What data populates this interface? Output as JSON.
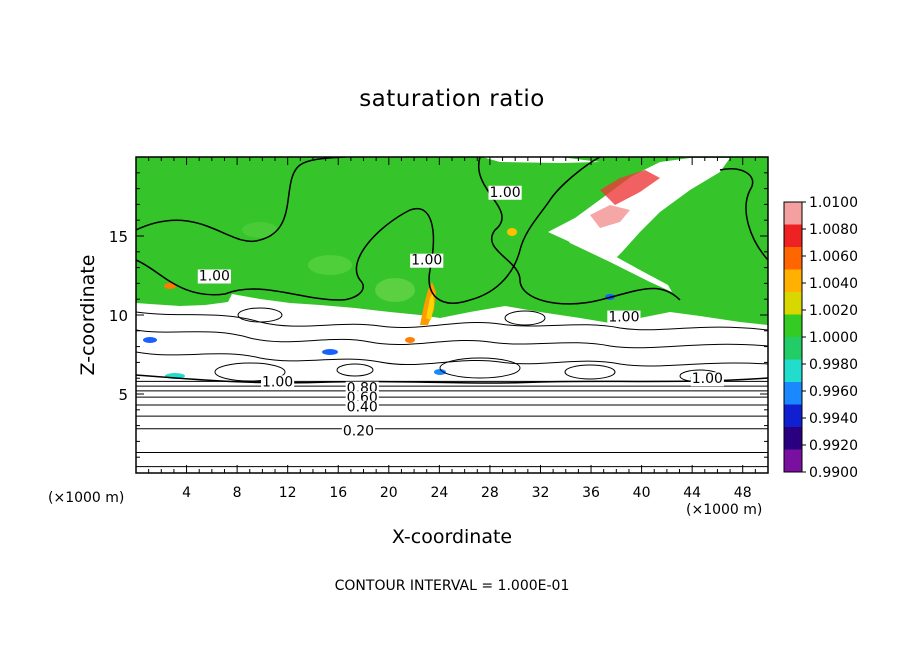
{
  "chart_data": {
    "type": "heatmap",
    "title": "saturation ratio",
    "xlabel": "X-coordinate",
    "ylabel": "Z-coordinate",
    "x_unit": "(×1000 m)",
    "xlim": [
      0,
      50
    ],
    "ylim": [
      0,
      20
    ],
    "x_ticks": [
      "4",
      "8",
      "12",
      "16",
      "20",
      "24",
      "28",
      "32",
      "36",
      "40",
      "44",
      "48"
    ],
    "y_ticks": [
      "5",
      "10",
      "15"
    ],
    "colorbar": {
      "levels": [
        "1.0100",
        "1.0080",
        "1.0060",
        "1.0040",
        "1.0020",
        "1.0000",
        "0.9980",
        "0.9960",
        "0.9940",
        "0.9920",
        "0.9900"
      ],
      "colors": [
        "#f4a0a0",
        "#ee2222",
        "#ff6600",
        "#ffb000",
        "#d8d800",
        "#33cc22",
        "#22cc66",
        "#22ddcc",
        "#1a88ff",
        "#1020d0",
        "#2a0080",
        "#7a10a0"
      ]
    },
    "contour_labels": [
      {
        "text": "1.00",
        "x": 23,
        "y": 13.5
      },
      {
        "text": "1.00",
        "x": 29.2,
        "y": 17.8
      },
      {
        "text": "1.00",
        "x": 6.2,
        "y": 12.5
      },
      {
        "text": "1.00",
        "x": 38.6,
        "y": 9.9
      },
      {
        "text": "1.00",
        "x": 11.2,
        "y": 5.8
      },
      {
        "text": "1.00",
        "x": 45.2,
        "y": 6.0
      },
      {
        "text": "0.80",
        "x": 17.9,
        "y": 5.4
      },
      {
        "text": "0.60",
        "x": 17.9,
        "y": 4.8
      },
      {
        "text": "0.40",
        "x": 17.9,
        "y": 4.2
      },
      {
        "text": "0.20",
        "x": 17.6,
        "y": 2.7
      }
    ],
    "contour_lines_z": [
      0.4,
      1.3,
      2.8,
      3.6,
      4.3,
      4.8,
      5.2,
      5.5,
      5.8
    ],
    "footer": "CONTOUR INTERVAL = 1.000E-01"
  }
}
